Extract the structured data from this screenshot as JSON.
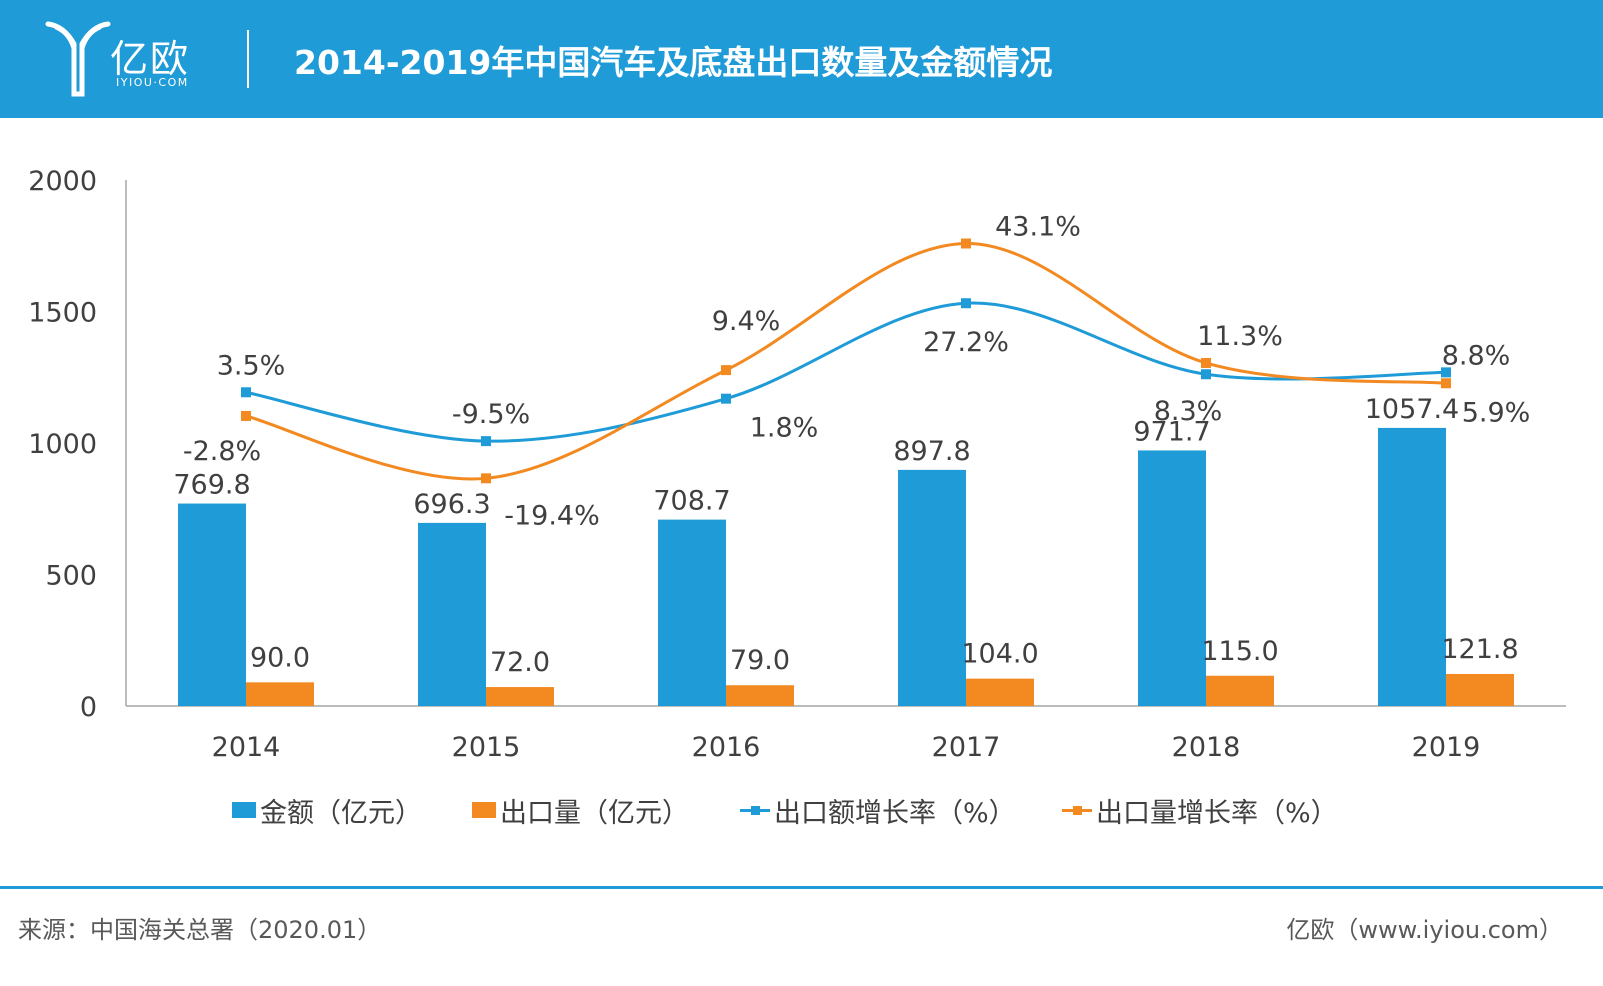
{
  "header": {
    "logo_name": "亿欧",
    "logo_url": "IYIOU·COM",
    "title": "2014-2019年中国汽车及底盘出口数量及金额情况"
  },
  "colors": {
    "header_bg": "#1f9bd7",
    "amount_bar": "#1f9bd7",
    "volume_bar": "#f28a21",
    "amount_growth_line": "#1f9bd7",
    "volume_growth_line": "#f28a21"
  },
  "chart_data": {
    "type": "bar",
    "categories": [
      "2014",
      "2015",
      "2016",
      "2017",
      "2018",
      "2019"
    ],
    "ylim": [
      0,
      2000
    ],
    "yticks": [
      "0",
      "500",
      "1000",
      "1500",
      "2000"
    ],
    "grid": false,
    "legend_position": "bottom",
    "series": [
      {
        "name": "金额（亿元）",
        "kind": "bar",
        "values": [
          769.8,
          696.3,
          708.7,
          897.8,
          971.7,
          1057.4
        ],
        "labels": [
          "769.8",
          "696.3",
          "708.7",
          "897.8",
          "971.7",
          "1057.4"
        ]
      },
      {
        "name": "出口量（亿元）",
        "kind": "bar",
        "values": [
          90.0,
          72.0,
          79.0,
          104.0,
          115.0,
          121.8
        ],
        "labels": [
          "90.0",
          "72.0",
          "79.0",
          "104.0",
          "115.0",
          "121.8"
        ]
      },
      {
        "name": "出口额增长率（%）",
        "kind": "line",
        "values": [
          3.5,
          -9.5,
          1.8,
          27.2,
          8.3,
          8.8
        ],
        "labels": [
          "3.5%",
          "-9.5%",
          "1.8%",
          "27.2%",
          "8.3%",
          "8.8%"
        ]
      },
      {
        "name": "出口量增长率（%）",
        "kind": "line",
        "values": [
          -2.8,
          -19.4,
          9.4,
          43.1,
          11.3,
          5.9
        ],
        "labels": [
          "-2.8%",
          "-19.4%",
          "9.4%",
          "43.1%",
          "11.3%",
          "5.9%"
        ]
      }
    ]
  },
  "footer": {
    "source": "来源：中国海关总署（2020.01）",
    "site": "亿欧（www.iyiou.com）"
  }
}
